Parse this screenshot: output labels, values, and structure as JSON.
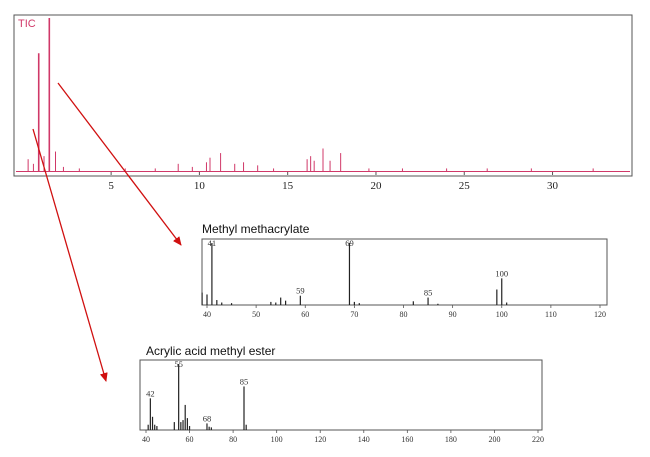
{
  "colors": {
    "tic_trace": "#d03868",
    "arrow": "#d01010",
    "ms_bar": "#222222",
    "frame": "#555555",
    "tic_label": "#d03868"
  },
  "chart_data": [
    {
      "type": "line",
      "label": "TIC",
      "xlim": [
        -0.5,
        34.5
      ],
      "ylim": [
        0,
        1
      ],
      "x_ticks": [
        5,
        10,
        15,
        20,
        25,
        30
      ],
      "peaks": [
        {
          "x": 0.3,
          "y": 0.08
        },
        {
          "x": 0.6,
          "y": 0.05
        },
        {
          "x": 0.9,
          "y": 0.77
        },
        {
          "x": 1.2,
          "y": 0.1
        },
        {
          "x": 1.5,
          "y": 1.0
        },
        {
          "x": 1.85,
          "y": 0.13
        },
        {
          "x": 2.3,
          "y": 0.03
        },
        {
          "x": 3.2,
          "y": 0.02
        },
        {
          "x": 5.8,
          "y": 0.02
        },
        {
          "x": 7.5,
          "y": 0.02
        },
        {
          "x": 8.8,
          "y": 0.05
        },
        {
          "x": 9.6,
          "y": 0.03
        },
        {
          "x": 10.4,
          "y": 0.06
        },
        {
          "x": 10.6,
          "y": 0.09
        },
        {
          "x": 11.2,
          "y": 0.12
        },
        {
          "x": 12.0,
          "y": 0.05
        },
        {
          "x": 12.5,
          "y": 0.06
        },
        {
          "x": 13.3,
          "y": 0.04
        },
        {
          "x": 14.2,
          "y": 0.02
        },
        {
          "x": 16.1,
          "y": 0.08
        },
        {
          "x": 16.3,
          "y": 0.1
        },
        {
          "x": 16.5,
          "y": 0.07
        },
        {
          "x": 17.0,
          "y": 0.15
        },
        {
          "x": 17.4,
          "y": 0.07
        },
        {
          "x": 18.0,
          "y": 0.12
        },
        {
          "x": 19.6,
          "y": 0.02
        },
        {
          "x": 21.5,
          "y": 0.02
        },
        {
          "x": 24.0,
          "y": 0.02
        },
        {
          "x": 26.3,
          "y": 0.02
        },
        {
          "x": 28.8,
          "y": 0.02
        },
        {
          "x": 32.3,
          "y": 0.02
        }
      ]
    },
    {
      "type": "bar",
      "title": "Methyl methacrylate",
      "xlim": [
        40,
        120
      ],
      "ylim": [
        0,
        100
      ],
      "x_ticks": [
        40,
        50,
        60,
        70,
        80,
        90,
        100,
        110,
        120
      ],
      "x": [
        39,
        40,
        41,
        42,
        43,
        45,
        53,
        54,
        55,
        56,
        59,
        69,
        70,
        71,
        82,
        85,
        87,
        99,
        100,
        101
      ],
      "values": [
        20,
        17,
        100,
        8,
        4,
        3,
        5,
        4,
        12,
        7,
        15,
        100,
        5,
        3,
        6,
        12,
        2,
        25,
        43,
        4
      ],
      "peak_labels": [
        {
          "x": 41,
          "text": "41"
        },
        {
          "x": 59,
          "text": "59"
        },
        {
          "x": 69,
          "text": "69"
        },
        {
          "x": 85,
          "text": "85"
        },
        {
          "x": 100,
          "text": "100"
        }
      ]
    },
    {
      "type": "bar",
      "title": "Acrylic acid methyl ester",
      "xlim": [
        40,
        220
      ],
      "ylim": [
        0,
        100
      ],
      "x_ticks": [
        40,
        60,
        80,
        100,
        120,
        140,
        160,
        180,
        200,
        220
      ],
      "x": [
        41,
        42,
        43,
        44,
        45,
        53,
        55,
        56,
        57,
        58,
        59,
        60,
        68,
        69,
        70,
        85,
        86
      ],
      "values": [
        8,
        48,
        20,
        8,
        6,
        12,
        100,
        12,
        15,
        38,
        18,
        6,
        10,
        5,
        4,
        66,
        8
      ],
      "peak_labels": [
        {
          "x": 42,
          "text": "42"
        },
        {
          "x": 55,
          "text": "55"
        },
        {
          "x": 68,
          "text": "68"
        },
        {
          "x": 85,
          "text": "85"
        }
      ]
    }
  ]
}
